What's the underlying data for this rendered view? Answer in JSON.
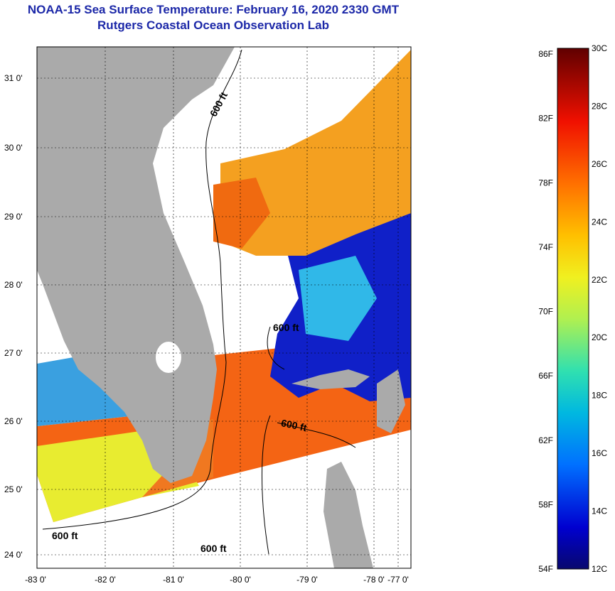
{
  "title": {
    "line1": "NOAA-15 Sea Surface Temperature:  February 16, 2020 2330 GMT",
    "line2": "Rutgers Coastal Ocean Observation Lab"
  },
  "map": {
    "lon_range": [
      -83,
      -76.8
    ],
    "lat_range": [
      23.8,
      31.4
    ],
    "lon_ticks": [
      "-83 0'",
      "-82 0'",
      "-81 0'",
      "-80 0'",
      "-79 0'",
      "-78 0'",
      "-77 0'"
    ],
    "lat_ticks": [
      "31 0'",
      "30 0'",
      "29 0'",
      "28 0'",
      "27 0'",
      "26 0'",
      "25 0'",
      "24 0'"
    ],
    "contour_label": "600 ft",
    "colors": {
      "land": "#aaaaaa",
      "background": "#ffffff",
      "title": "#1c28a8"
    }
  },
  "colorbar": {
    "fahrenheit": [
      "86F",
      "82F",
      "78F",
      "74F",
      "70F",
      "66F",
      "62F",
      "58F",
      "54F"
    ],
    "celsius": [
      "30C",
      "28C",
      "26C",
      "24C",
      "22C",
      "20C",
      "18C",
      "16C",
      "14C",
      "12C"
    ],
    "range_c": [
      12,
      30
    ]
  }
}
